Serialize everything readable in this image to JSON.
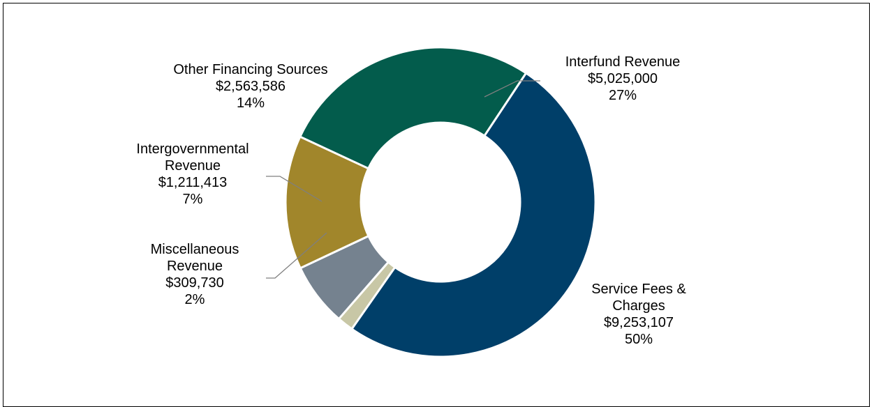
{
  "chart_data": {
    "type": "donut",
    "total_display": "",
    "slices": [
      {
        "name_lines": [
          "Interfund Revenue"
        ],
        "amount": "$5,025,000",
        "percent": "27%",
        "value": 5025000,
        "color": "#035c4c"
      },
      {
        "name_lines": [
          "Service Fees &",
          "Charges"
        ],
        "amount": "$9,253,107",
        "percent": "50%",
        "value": 9253107,
        "color": "#003f69"
      },
      {
        "name_lines": [
          "Miscellaneous",
          "Revenue"
        ],
        "amount": "$309,730",
        "percent": "2%",
        "value": 309730,
        "color": "#c8c7a6"
      },
      {
        "name_lines": [
          "Intergovernmental",
          "Revenue"
        ],
        "amount": "$1,211,413",
        "percent": "7%",
        "value": 1211413,
        "color": "#75828f"
      },
      {
        "name_lines": [
          "Other Financing Sources"
        ],
        "amount": "$2,563,586",
        "percent": "14%",
        "value": 2563586,
        "color": "#a1862b"
      }
    ]
  }
}
